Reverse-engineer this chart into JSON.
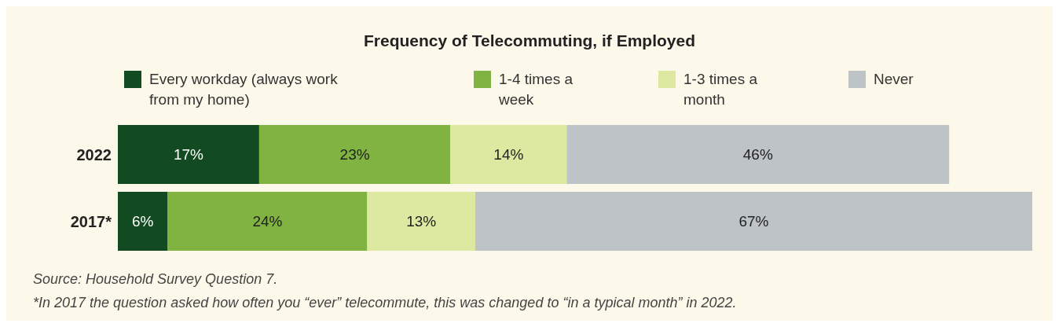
{
  "chart_data": {
    "type": "bar",
    "orientation": "horizontal",
    "stacked": true,
    "title": "Frequency of Telecommuting, if Employed",
    "categories": [
      "2022",
      "2017*"
    ],
    "series": [
      {
        "name": "Every workday (always work from my home)",
        "color": "#124a21",
        "values": [
          17,
          6
        ],
        "value_labels": [
          "17%",
          "6%"
        ]
      },
      {
        "name": "1-4 times a week",
        "color": "#80b341",
        "values": [
          23,
          24
        ],
        "value_labels": [
          "23%",
          "24%"
        ]
      },
      {
        "name": "1-3 times a month",
        "color": "#dde9a0",
        "values": [
          14,
          13
        ],
        "value_labels": [
          "14%",
          "13%"
        ]
      },
      {
        "name": "Never",
        "color": "#bdc3c6",
        "values": [
          46,
          67
        ],
        "value_labels": [
          "46%",
          "67%"
        ]
      }
    ],
    "legend": "top",
    "grid": false,
    "tick_labels": "y",
    "annotations": [
      "Source: Household Survey Question 7.",
      "*In 2017 the question asked how often you “ever” telecommute, this was changed to “in a typical month” in 2022."
    ]
  }
}
